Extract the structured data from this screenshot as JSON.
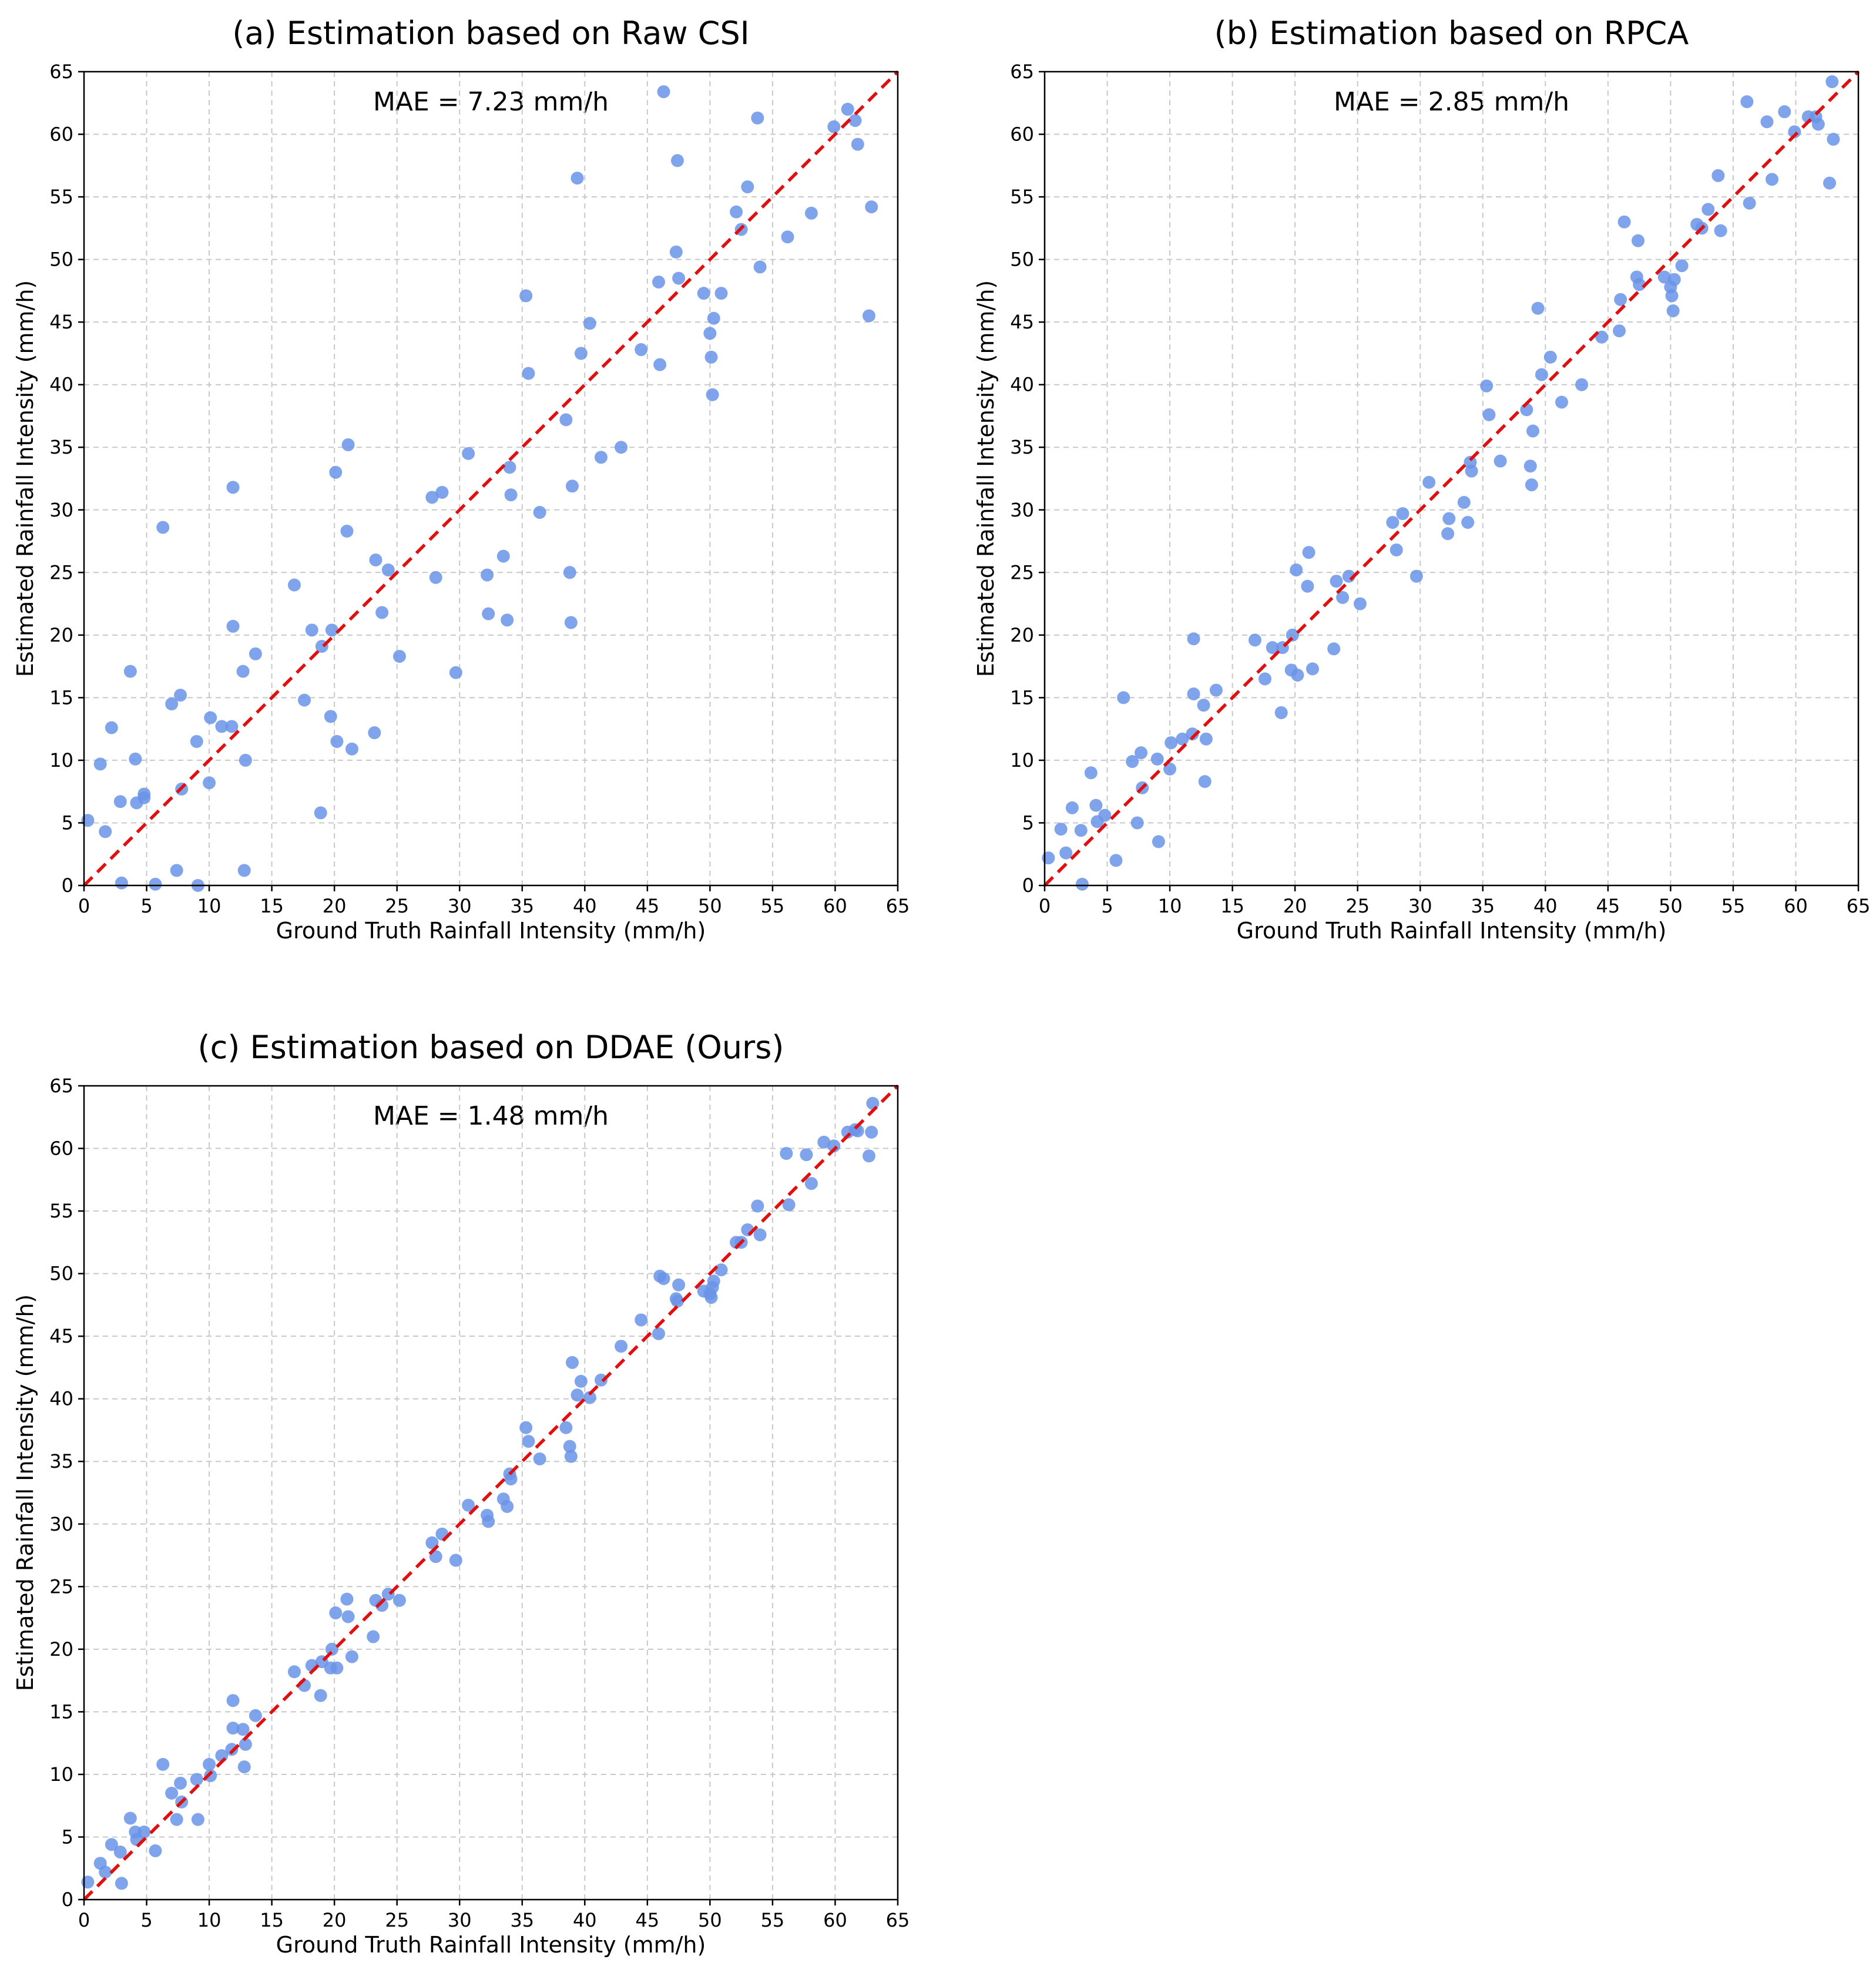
{
  "style": {
    "point_color": "#6a94e8",
    "point_opacity": 0.85,
    "line_color": "#e01010",
    "grid": true
  },
  "chart_data": [
    {
      "type": "scatter",
      "title": "(a) Estimation based on Raw CSI",
      "xlabel": "Ground Truth Rainfall Intensity (mm/h)",
      "ylabel": "Estimated Rainfall Intensity (mm/h)",
      "annotation": "MAE = 7.23 mm/h",
      "xlim": [
        0,
        65
      ],
      "ylim": [
        0,
        65
      ],
      "xticks": [
        "0",
        "5",
        "10",
        "15",
        "20",
        "25",
        "30",
        "35",
        "40",
        "45",
        "50",
        "55",
        "60",
        "65"
      ],
      "yticks": [
        "0",
        "5",
        "10",
        "15",
        "20",
        "25",
        "30",
        "35",
        "40",
        "45",
        "50",
        "55",
        "60",
        "65"
      ],
      "reference_line": "y = x",
      "x": [
        0.3,
        1.3,
        1.7,
        2.2,
        3.0,
        2.9,
        3.7,
        4.1,
        4.2,
        4.8,
        4.8,
        5.7,
        6.3,
        7.0,
        7.4,
        7.7,
        7.8,
        9.0,
        9.1,
        10.0,
        10.1,
        11.0,
        11.8,
        11.9,
        11.9,
        12.7,
        12.8,
        12.9,
        13.7,
        16.8,
        17.6,
        18.2,
        18.9,
        19.0,
        19.7,
        19.8,
        20.1,
        20.2,
        21.0,
        21.1,
        21.4,
        23.2,
        23.3,
        23.8,
        24.3,
        25.2,
        27.8,
        28.1,
        28.6,
        29.7,
        30.7,
        32.2,
        32.3,
        33.5,
        33.8,
        34.0,
        34.1,
        35.3,
        35.5,
        36.4,
        38.5,
        38.8,
        38.9,
        39.0,
        39.4,
        39.7,
        40.4,
        41.3,
        42.9,
        44.5,
        45.9,
        46.0,
        46.3,
        47.3,
        47.4,
        47.5,
        49.5,
        50.0,
        50.1,
        50.2,
        50.3,
        50.9,
        52.1,
        52.5,
        53.0,
        53.8,
        54.0,
        56.2,
        58.1,
        59.9,
        61.0,
        61.6,
        61.8,
        62.7,
        62.9
      ],
      "y": [
        5.2,
        9.7,
        4.3,
        12.6,
        0.2,
        6.7,
        17.1,
        10.1,
        6.6,
        7.0,
        7.3,
        0.1,
        28.6,
        14.5,
        1.2,
        15.2,
        7.7,
        11.5,
        0.0,
        8.2,
        13.4,
        12.7,
        12.7,
        20.7,
        31.8,
        17.1,
        1.2,
        10.0,
        18.5,
        24.0,
        14.8,
        20.4,
        5.8,
        19.1,
        13.5,
        20.4,
        33.0,
        11.5,
        28.3,
        35.2,
        10.9,
        12.2,
        26.0,
        21.8,
        25.2,
        18.3,
        31.0,
        24.6,
        31.4,
        17.0,
        34.5,
        24.8,
        21.7,
        26.3,
        21.2,
        33.4,
        31.2,
        47.1,
        40.9,
        29.8,
        37.2,
        25.0,
        21.0,
        31.9,
        56.5,
        42.5,
        44.9,
        34.2,
        35.0,
        42.8,
        48.2,
        41.6,
        63.4,
        50.6,
        57.9,
        48.5,
        47.3,
        44.1,
        42.2,
        39.2,
        45.3,
        47.3,
        53.8,
        52.4,
        55.8,
        61.3,
        49.4,
        51.8,
        53.7,
        60.6,
        62.0,
        61.1,
        59.2,
        45.5,
        54.2
      ]
    },
    {
      "type": "scatter",
      "title": "(b) Estimation based on RPCA",
      "xlabel": "Ground Truth Rainfall Intensity (mm/h)",
      "ylabel": "Estimated Rainfall Intensity (mm/h)",
      "annotation": "MAE = 2.85 mm/h",
      "xlim": [
        0,
        65
      ],
      "ylim": [
        0,
        65
      ],
      "xticks": [
        "0",
        "5",
        "10",
        "15",
        "20",
        "25",
        "30",
        "35",
        "40",
        "45",
        "50",
        "55",
        "60",
        "65"
      ],
      "yticks": [
        "0",
        "5",
        "10",
        "15",
        "20",
        "25",
        "30",
        "35",
        "40",
        "45",
        "50",
        "55",
        "60",
        "65"
      ],
      "reference_line": "y = x",
      "x": [
        0.3,
        1.3,
        1.7,
        2.2,
        3.0,
        2.9,
        3.7,
        4.1,
        4.2,
        4.8,
        5.7,
        6.3,
        7.0,
        7.4,
        7.7,
        7.8,
        9.0,
        9.1,
        10.0,
        10.1,
        11.0,
        11.8,
        11.9,
        11.9,
        12.7,
        12.8,
        12.9,
        13.7,
        16.8,
        17.6,
        18.2,
        18.9,
        19.0,
        19.7,
        19.8,
        20.1,
        20.2,
        21.0,
        21.1,
        21.4,
        23.1,
        23.3,
        23.8,
        24.3,
        25.2,
        27.8,
        28.1,
        28.6,
        29.7,
        30.7,
        32.2,
        32.3,
        33.5,
        33.8,
        34.0,
        34.1,
        35.3,
        35.5,
        36.4,
        38.5,
        38.8,
        38.9,
        39.0,
        39.4,
        39.7,
        40.4,
        41.3,
        42.9,
        44.5,
        45.9,
        46.0,
        46.3,
        47.3,
        47.4,
        47.5,
        49.5,
        50.0,
        50.1,
        50.2,
        50.3,
        50.9,
        52.1,
        52.5,
        53.0,
        53.8,
        54.0,
        56.1,
        56.3,
        57.7,
        58.1,
        59.1,
        59.9,
        61.0,
        61.6,
        61.8,
        62.7,
        62.9,
        63.0
      ],
      "y": [
        2.2,
        4.5,
        2.6,
        6.2,
        0.1,
        4.4,
        9.0,
        6.4,
        5.1,
        5.6,
        2.0,
        15.0,
        9.9,
        5.0,
        10.6,
        7.8,
        10.1,
        3.5,
        9.3,
        11.4,
        11.7,
        12.1,
        15.3,
        19.7,
        14.4,
        8.3,
        11.7,
        15.6,
        19.6,
        16.5,
        19.0,
        13.8,
        19.0,
        17.2,
        20.0,
        25.2,
        16.8,
        23.9,
        26.6,
        17.3,
        18.9,
        24.3,
        23.0,
        24.7,
        22.5,
        29.0,
        26.8,
        29.7,
        24.7,
        32.2,
        28.1,
        29.3,
        30.6,
        29.0,
        33.8,
        33.1,
        39.9,
        37.6,
        33.9,
        38.0,
        33.5,
        32.0,
        36.3,
        46.1,
        40.8,
        42.2,
        38.6,
        40.0,
        43.8,
        44.3,
        46.8,
        53.0,
        48.6,
        51.5,
        48.0,
        48.6,
        47.8,
        47.1,
        45.9,
        48.4,
        49.5,
        52.8,
        52.5,
        54.0,
        56.7,
        52.3,
        62.6,
        54.5,
        61.0,
        56.4,
        61.8,
        60.2,
        61.4,
        61.4,
        60.8,
        56.1,
        64.2,
        59.6
      ]
    },
    {
      "type": "scatter",
      "title": "(c) Estimation based on DDAE (Ours)",
      "xlabel": "Ground Truth Rainfall Intensity (mm/h)",
      "ylabel": "Estimated Rainfall Intensity (mm/h)",
      "annotation": "MAE = 1.48 mm/h",
      "xlim": [
        0,
        65
      ],
      "ylim": [
        0,
        65
      ],
      "xticks": [
        "0",
        "5",
        "10",
        "15",
        "20",
        "25",
        "30",
        "35",
        "40",
        "45",
        "50",
        "55",
        "60",
        "65"
      ],
      "yticks": [
        "0",
        "5",
        "10",
        "15",
        "20",
        "25",
        "30",
        "35",
        "40",
        "45",
        "50",
        "55",
        "60",
        "65"
      ],
      "reference_line": "y = x",
      "x": [
        0.3,
        1.3,
        1.7,
        2.2,
        3.0,
        2.9,
        3.7,
        4.1,
        4.2,
        4.8,
        5.7,
        6.3,
        7.0,
        7.4,
        7.7,
        7.8,
        9.0,
        9.1,
        10.0,
        10.1,
        11.0,
        11.8,
        11.9,
        11.9,
        12.7,
        12.8,
        12.9,
        13.7,
        16.8,
        17.6,
        18.2,
        18.9,
        19.0,
        19.7,
        19.8,
        20.1,
        20.2,
        21.0,
        21.1,
        21.4,
        23.1,
        23.3,
        23.8,
        24.3,
        25.2,
        27.8,
        28.1,
        28.6,
        29.7,
        30.7,
        32.2,
        32.3,
        33.5,
        33.8,
        34.0,
        34.1,
        35.3,
        35.5,
        36.4,
        38.5,
        38.8,
        38.9,
        39.0,
        39.4,
        39.7,
        40.4,
        41.3,
        42.9,
        44.5,
        45.9,
        46.0,
        46.3,
        47.3,
        47.4,
        47.5,
        49.5,
        50.0,
        50.1,
        50.2,
        50.3,
        50.9,
        52.1,
        52.5,
        53.0,
        53.8,
        54.0,
        56.1,
        56.3,
        57.7,
        58.1,
        59.1,
        59.9,
        61.0,
        61.6,
        61.8,
        62.7,
        62.9,
        63.0
      ],
      "y": [
        1.4,
        2.9,
        2.2,
        4.4,
        1.3,
        3.8,
        6.5,
        5.4,
        4.8,
        5.4,
        3.9,
        10.8,
        8.5,
        6.4,
        9.3,
        7.8,
        9.6,
        6.4,
        10.8,
        9.9,
        11.5,
        12.0,
        13.7,
        15.9,
        13.6,
        10.6,
        12.4,
        14.7,
        18.2,
        17.1,
        18.7,
        16.3,
        19.0,
        18.5,
        20.0,
        22.9,
        18.5,
        24.0,
        22.6,
        19.4,
        21.0,
        23.9,
        23.5,
        24.4,
        23.9,
        28.5,
        27.4,
        29.2,
        27.1,
        31.5,
        30.7,
        30.2,
        32.0,
        31.4,
        34.0,
        33.6,
        37.7,
        36.6,
        35.2,
        37.7,
        36.2,
        35.4,
        42.9,
        40.3,
        41.4,
        40.1,
        41.5,
        44.2,
        46.3,
        45.2,
        49.8,
        49.6,
        48.0,
        47.8,
        49.1,
        48.6,
        48.4,
        48.1,
        48.9,
        49.4,
        50.3,
        52.5,
        52.5,
        53.5,
        55.4,
        53.1,
        59.6,
        55.5,
        59.5,
        57.2,
        60.5,
        60.2,
        61.3,
        61.5,
        61.4,
        59.4,
        61.3,
        63.6
      ]
    }
  ]
}
